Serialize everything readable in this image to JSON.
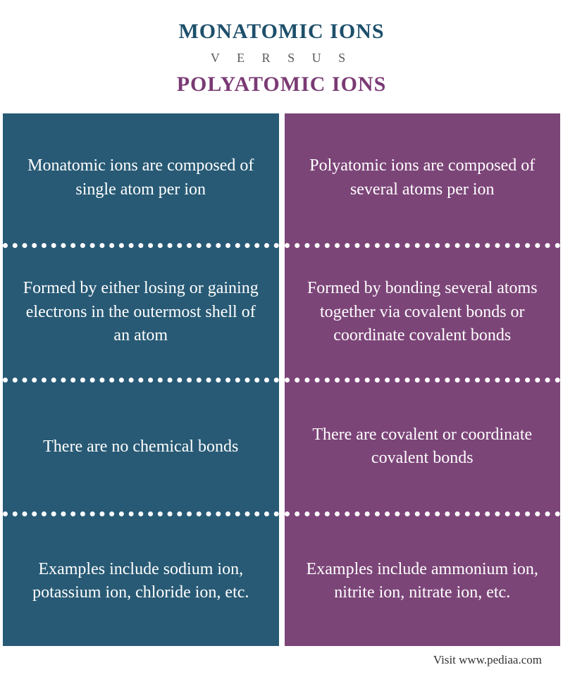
{
  "header": {
    "title_left": "MONATOMIC IONS",
    "versus": "V E R S U S",
    "title_right": "POLYATOMIC IONS",
    "color_left": "#1d4f6b",
    "color_right": "#7a3a74"
  },
  "columns": {
    "left": {
      "bg_color": "#285a75",
      "divider_color": "#ffffff",
      "cells": [
        "Monatomic ions are composed of single atom per ion",
        "Formed by either losing or gaining electrons in the outermost shell of an atom",
        "There are no chemical bonds",
        "Examples include sodium ion, potassium ion, chloride ion, etc."
      ]
    },
    "right": {
      "bg_color": "#7c4578",
      "divider_color": "#ffffff",
      "cells": [
        "Polyatomic ions are composed of several atoms per ion",
        "Formed by bonding several atoms together via covalent bonds or coordinate covalent bonds",
        "There are covalent or coordinate covalent bonds",
        "Examples include ammonium ion, nitrite ion, nitrate ion, etc."
      ]
    }
  },
  "footer": {
    "text": "Visit www.pediaa.com"
  }
}
